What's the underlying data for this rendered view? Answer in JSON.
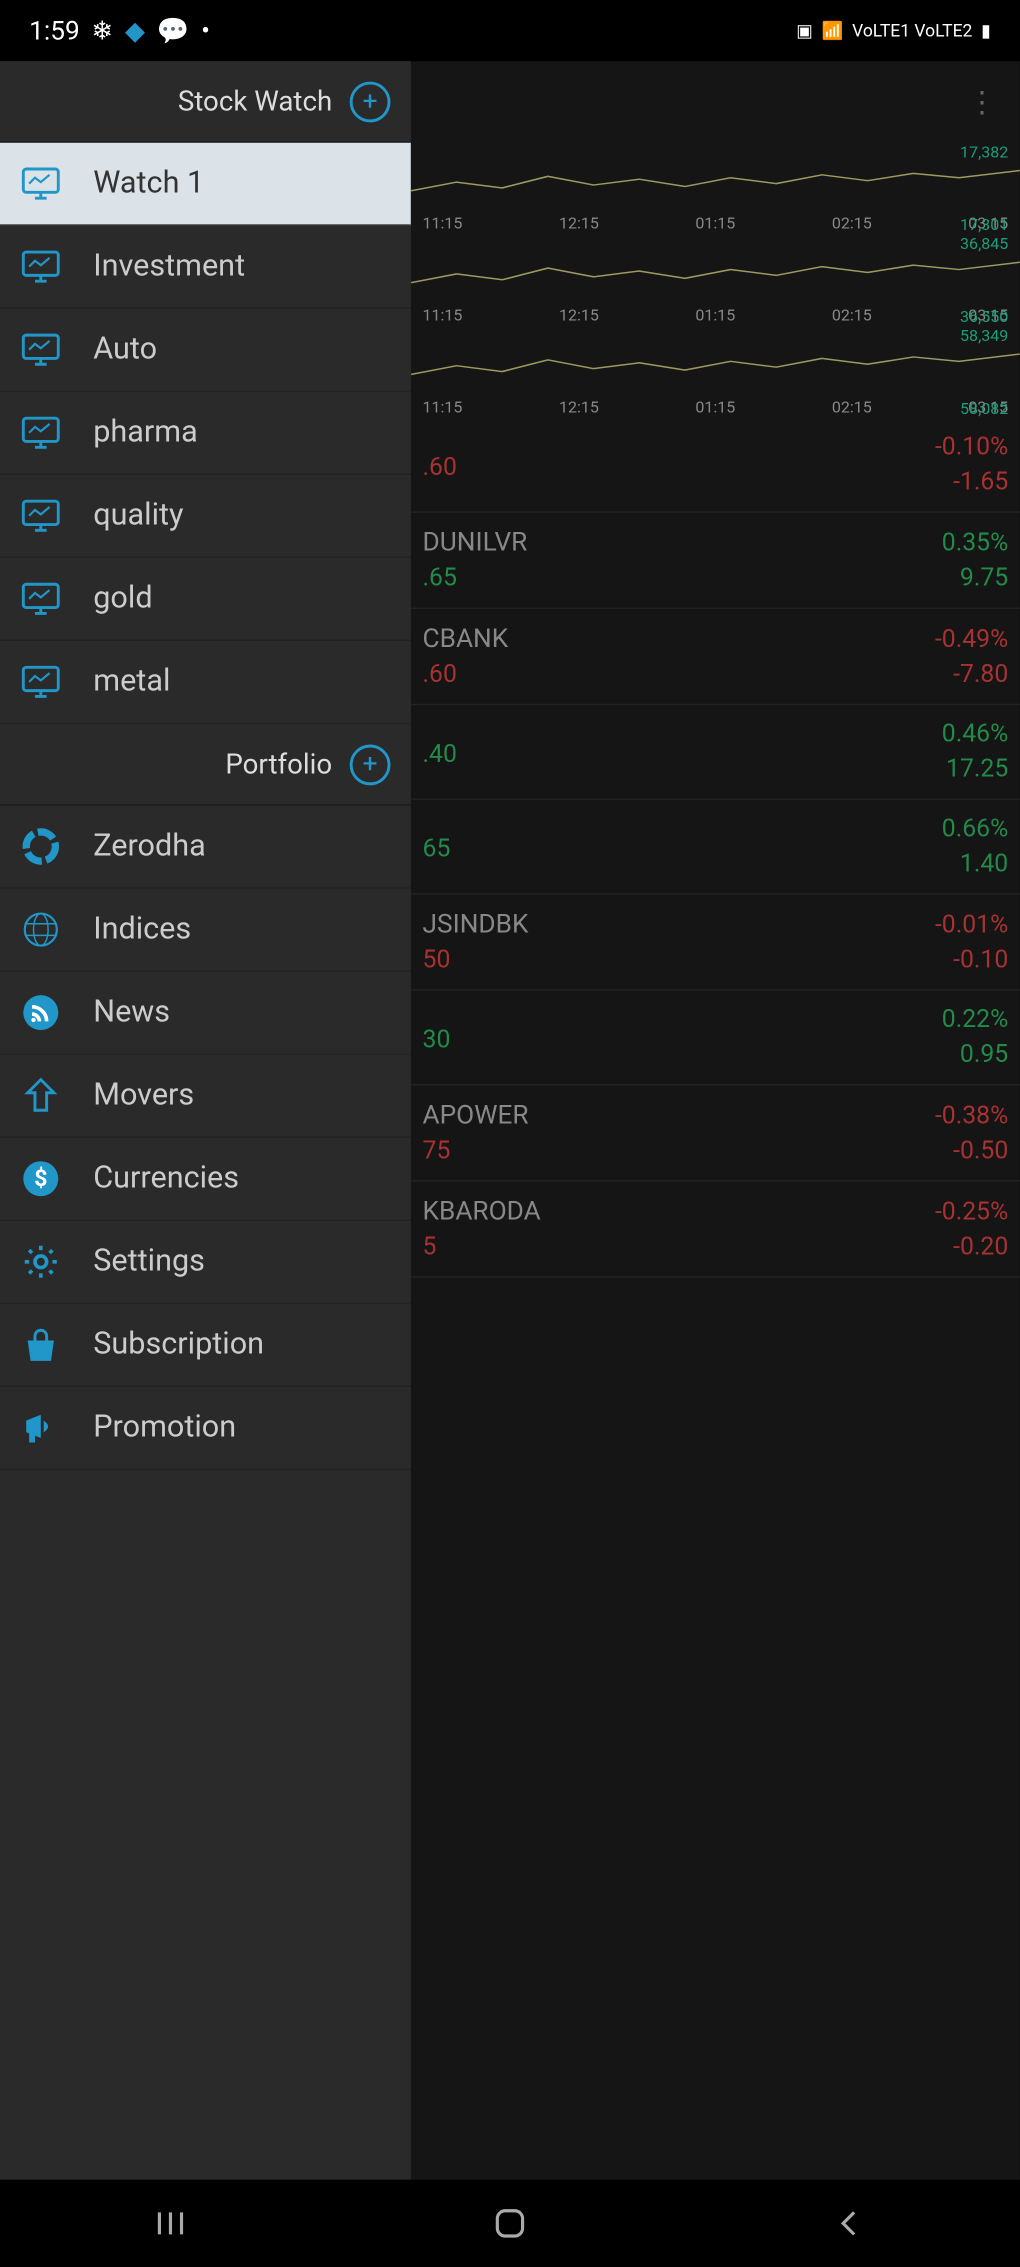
{
  "status": {
    "time": "1:59",
    "signals": "VoLTE1 VoLTE2"
  },
  "sidebar": {
    "section1_title": "Stock Watch",
    "watchlists": [
      {
        "label": "Watch 1",
        "active": true
      },
      {
        "label": "Investment",
        "active": false
      },
      {
        "label": "Auto",
        "active": false
      },
      {
        "label": "pharma",
        "active": false
      },
      {
        "label": "quality",
        "active": false
      },
      {
        "label": "gold",
        "active": false
      },
      {
        "label": "metal",
        "active": false
      }
    ],
    "section2_title": "Portfolio",
    "menu": [
      {
        "label": "Zerodha",
        "icon": "ring"
      },
      {
        "label": "Indices",
        "icon": "globe"
      },
      {
        "label": "News",
        "icon": "rss"
      },
      {
        "label": "Movers",
        "icon": "arrow-up"
      },
      {
        "label": "Currencies",
        "icon": "dollar"
      },
      {
        "label": "Settings",
        "icon": "gear"
      },
      {
        "label": "Subscription",
        "icon": "bag"
      },
      {
        "label": "Promotion",
        "icon": "megaphone"
      }
    ]
  },
  "charts": {
    "timeLabels": [
      "11:15",
      "12:15",
      "01:15",
      "02:15",
      "03:15"
    ],
    "vals": [
      "17,382",
      "17,301",
      "36,845",
      "36,550",
      "58,349",
      "58,082"
    ],
    "line_color": "#9a9a60",
    "grid_color": "#333"
  },
  "stocks": [
    {
      "sym": "",
      "price": ".60",
      "pct": "-0.10%",
      "chg": "-1.65",
      "dir": "neg"
    },
    {
      "sym": "DUNILVR",
      "price": ".65",
      "pct": "0.35%",
      "chg": "9.75",
      "dir": "pos"
    },
    {
      "sym": "CBANK",
      "price": ".60",
      "pct": "-0.49%",
      "chg": "-7.80",
      "dir": "neg"
    },
    {
      "sym": "",
      "price": ".40",
      "pct": "0.46%",
      "chg": "17.25",
      "dir": "pos"
    },
    {
      "sym": "",
      "price": "65",
      "pct": "0.66%",
      "chg": "1.40",
      "dir": "pos"
    },
    {
      "sym": "JSINDBK",
      "price": "50",
      "pct": "-0.01%",
      "chg": "-0.10",
      "dir": "neg"
    },
    {
      "sym": "",
      "price": "30",
      "pct": "0.22%",
      "chg": "0.95",
      "dir": "pos"
    },
    {
      "sym": "APOWER",
      "price": "75",
      "pct": "-0.38%",
      "chg": "-0.50",
      "dir": "neg"
    },
    {
      "sym": "KBARODA",
      "price": "5",
      "pct": "-0.25%",
      "chg": "-0.20",
      "dir": "neg"
    }
  ],
  "colors": {
    "accent": "#2196c9",
    "pos": "#228b4a",
    "neg": "#a83232",
    "sidebar_bg": "#2a2a2a",
    "active_bg": "#dce3e8"
  }
}
